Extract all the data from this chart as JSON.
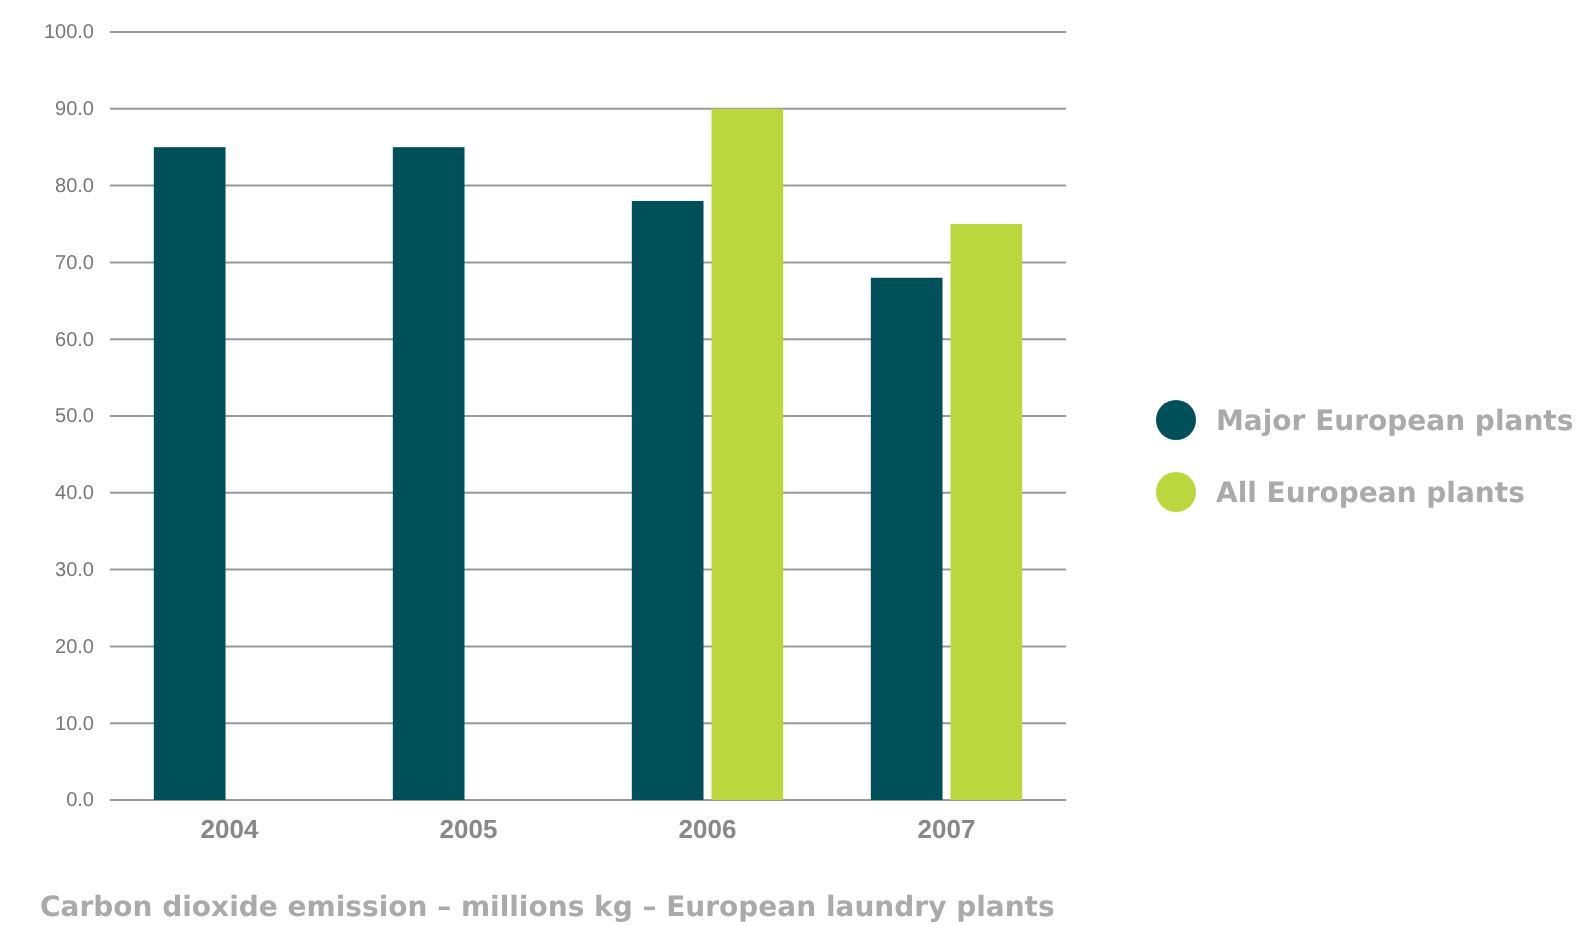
{
  "chart_data": {
    "type": "bar",
    "title": "Carbon dioxide emission – millions kg – European laundry plants",
    "categories": [
      "2004",
      "2005",
      "2006",
      "2007"
    ],
    "series": [
      {
        "name": "Major European plants",
        "color": "#00505a",
        "values": [
          85,
          85,
          78,
          68
        ]
      },
      {
        "name": "All European plants",
        "color": "#bcd63e",
        "values": [
          null,
          null,
          90,
          75
        ]
      }
    ],
    "ylim": [
      0,
      100
    ],
    "yticks": [
      {
        "value": 0,
        "label": "0.0"
      },
      {
        "value": 10,
        "label": "10.0"
      },
      {
        "value": 20,
        "label": "20.0"
      },
      {
        "value": 30,
        "label": "30.0"
      },
      {
        "value": 40,
        "label": "40.0"
      },
      {
        "value": 50,
        "label": "50.0"
      },
      {
        "value": 60,
        "label": "60.0"
      },
      {
        "value": 70,
        "label": "70.0"
      },
      {
        "value": 80,
        "label": "80.0"
      },
      {
        "value": 90,
        "label": "90.0"
      },
      {
        "value": 100,
        "label": "100.0"
      }
    ],
    "grid": "y",
    "legend": "right"
  }
}
